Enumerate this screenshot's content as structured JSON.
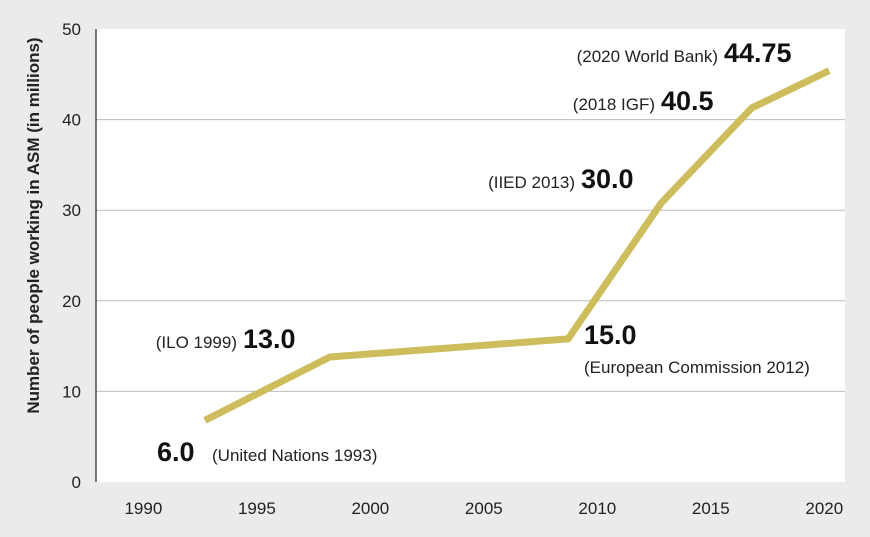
{
  "chart_data": {
    "type": "line",
    "ylabel": "Number of people working in ASM (in millions)",
    "xlabel": "",
    "title": "",
    "xlim": [
      1988,
      2021
    ],
    "ylim": [
      0,
      50
    ],
    "x_ticks": [
      "1990",
      "1995",
      "2000",
      "2005",
      "2010",
      "2015",
      "2020"
    ],
    "y_ticks": [
      "0",
      "10",
      "20",
      "30",
      "40",
      "50"
    ],
    "grid": "horizontal",
    "series": [
      {
        "color": "#cdbd5c",
        "points": [
          {
            "x": 1993,
            "y": 6.0,
            "value_label": "6.0",
            "source": "(United Nations 1993)"
          },
          {
            "x": 1999,
            "y": 13.0,
            "value_label": "13.0",
            "source": "(ILO 1999)"
          },
          {
            "x": 2012,
            "y": 15.0,
            "value_label": "15.0",
            "source": "(European Commission 2012)"
          },
          {
            "x": 2013,
            "y": 30.0,
            "value_label": "30.0",
            "source": "(IIED 2013)"
          },
          {
            "x": 2018,
            "y": 40.5,
            "value_label": "40.5",
            "source": "(2018 IGF)"
          },
          {
            "x": 2020,
            "y": 44.75,
            "value_label": "44.75",
            "source": "(2020 World Bank)"
          }
        ]
      }
    ]
  },
  "plot_line_x": [
    1992.8,
    1998.3,
    2008.8,
    2012.9,
    2016.9,
    2020.3
  ],
  "plot_line_y": [
    6.8,
    13.8,
    15.8,
    30.8,
    41.3,
    45.4
  ]
}
